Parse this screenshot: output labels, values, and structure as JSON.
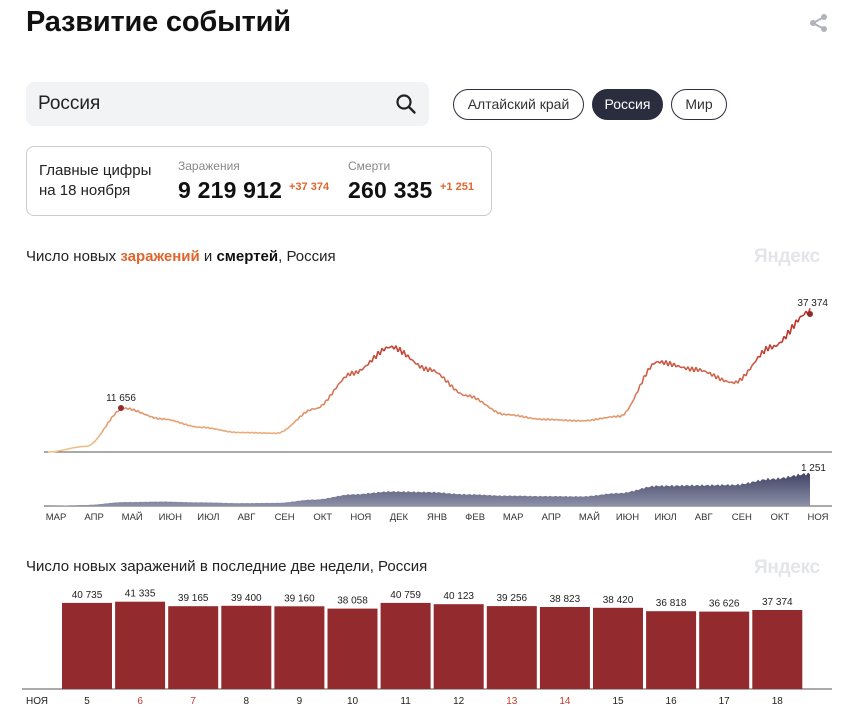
{
  "page": {
    "title": "Развитие событий"
  },
  "search": {
    "value": "Россия"
  },
  "chips": [
    {
      "label": "Алтайский край",
      "active": false
    },
    {
      "label": "Россия",
      "active": true
    },
    {
      "label": "Мир",
      "active": false
    }
  ],
  "stats": {
    "lead_line1": "Главные цифры",
    "lead_line2": "на 18 ноября",
    "infections_label": "Заражения",
    "infections_value": "9 219 912",
    "infections_delta": "+37 374",
    "deaths_label": "Смерти",
    "deaths_value": "260 335",
    "deaths_delta": "+1 251"
  },
  "chart1": {
    "title_prefix": "Число новых ",
    "title_infections": "заражений",
    "title_mid": " и ",
    "title_deaths": "смертей",
    "title_suffix": ", Россия",
    "watermark": "Яндекс",
    "peak_infections_label": "11 656",
    "last_infections_label": "37 374",
    "last_deaths_label": "1 251",
    "month_labels": [
      "МАР",
      "АПР",
      "МАЙ",
      "ИЮН",
      "ИЮЛ",
      "АВГ",
      "СЕН",
      "ОКТ",
      "НОЯ",
      "ДЕК",
      "ЯНВ",
      "ФЕВ",
      "МАР",
      "АПР",
      "МАЙ",
      "ИЮН",
      "ИЮЛ",
      "АВГ",
      "СЕН",
      "ОКТ",
      "НОЯ"
    ]
  },
  "chart2": {
    "title": "Число новых заражений в последние две недели, Россия",
    "watermark": "Яндекс",
    "month_label": "НОЯ"
  },
  "chart_data": [
    {
      "type": "line",
      "title": "Число новых заражений и смертей, Россия",
      "series": [
        {
          "name": "заражений",
          "points": [
            [
              "МАР",
              0
            ],
            [
              "АПР",
              1500
            ],
            [
              "МАЙ",
              11656
            ],
            [
              "ИЮН",
              8800
            ],
            [
              "ИЮЛ",
              6600
            ],
            [
              "АВГ",
              5200
            ],
            [
              "СЕН",
              5000
            ],
            [
              "ОКТ",
              11500
            ],
            [
              "НОЯ",
              21000
            ],
            [
              "ДЕК",
              28000
            ],
            [
              "ЯНВ",
              22000
            ],
            [
              "ФЕВ",
              15000
            ],
            [
              "МАР",
              10000
            ],
            [
              "АПР",
              8700
            ],
            [
              "МАЙ",
              8300
            ],
            [
              "ИЮН",
              9500
            ],
            [
              "ИЮЛ",
              24000
            ],
            [
              "АВГ",
              22000
            ],
            [
              "СЕН",
              18500
            ],
            [
              "ОКТ",
              28000
            ],
            [
              "НОЯ",
              37374
            ]
          ]
        },
        {
          "name": "смертей",
          "points": [
            [
              "МАР",
              0
            ],
            [
              "АПР",
              40
            ],
            [
              "МАЙ",
              150
            ],
            [
              "ИЮН",
              170
            ],
            [
              "ИЮЛ",
              140
            ],
            [
              "АВГ",
              110
            ],
            [
              "СЕН",
              120
            ],
            [
              "ОКТ",
              250
            ],
            [
              "НОЯ",
              450
            ],
            [
              "ДЕК",
              560
            ],
            [
              "ЯНВ",
              540
            ],
            [
              "ФЕВ",
              450
            ],
            [
              "МАР",
              400
            ],
            [
              "АПР",
              380
            ],
            [
              "МАЙ",
              370
            ],
            [
              "ИЮН",
              500
            ],
            [
              "ИЮЛ",
              780
            ],
            [
              "АВГ",
              800
            ],
            [
              "СЕН",
              820
            ],
            [
              "ОКТ",
              1050
            ],
            [
              "НОЯ",
              1251
            ]
          ]
        }
      ],
      "annotations": [
        "11 656",
        "37 374",
        "1 251"
      ]
    },
    {
      "type": "bar",
      "title": "Число новых заражений в последние две недели, Россия",
      "categories": [
        "5",
        "6",
        "7",
        "8",
        "9",
        "10",
        "11",
        "12",
        "13",
        "14",
        "15",
        "16",
        "17",
        "18"
      ],
      "values": [
        40735,
        41335,
        39165,
        39400,
        39160,
        38058,
        40759,
        40123,
        39256,
        38823,
        38420,
        36818,
        36626,
        37374
      ],
      "labels": [
        "40 735",
        "41 335",
        "39 165",
        "39 400",
        "39 160",
        "38 058",
        "40 759",
        "40 123",
        "39 256",
        "38 823",
        "38 420",
        "36 818",
        "36 626",
        "37 374"
      ],
      "weekend": [
        false,
        true,
        true,
        false,
        false,
        false,
        false,
        false,
        true,
        true,
        false,
        false,
        false,
        false
      ],
      "xlabel_month": "НОЯ",
      "color": "#932a2e",
      "weekend_label_color": "#c0392b"
    }
  ],
  "colors": {
    "infections_accent": "#e0662d",
    "deaths_fill": "#4a4d6b",
    "bar": "#932a2e",
    "chip_active": "#2a2d3e"
  }
}
